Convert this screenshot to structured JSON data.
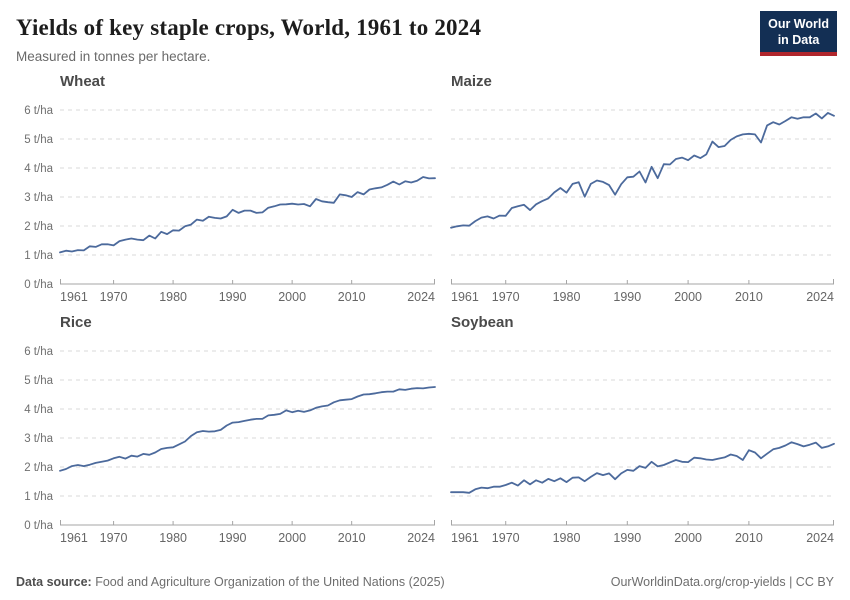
{
  "header": {
    "title": "Yields of key staple crops, World, 1961 to 2024",
    "subtitle": "Measured in tonnes per hectare.",
    "logo_line1": "Our World",
    "logo_line2": "in Data"
  },
  "colors": {
    "line": "#4c6a9c",
    "grid": "#d9d9d9",
    "axis": "#a5a5a5",
    "tick_text": "#6f6f6f",
    "logo_bg": "#132f54",
    "logo_accent": "#b0262c"
  },
  "chart_data": {
    "type": "line",
    "title": "Yields of key staple crops, World, 1961 to 2024",
    "subtitle": "Measured in tonnes per hectare.",
    "unit": "t/ha",
    "layout": "2x2 faceted small multiples, shared y-axis labels on left column only",
    "x_start": 1961,
    "x_end": 2024,
    "x_step": 1,
    "x_tick_labels": [
      1961,
      1970,
      1980,
      1990,
      2000,
      2010,
      2024
    ],
    "ylim": [
      0,
      6
    ],
    "y_ticks": [
      0,
      1,
      2,
      3,
      4,
      5,
      6
    ],
    "y_tick_format": "{v} t/ha",
    "grid": "horizontal-dashed",
    "legend": "none",
    "series": [
      {
        "name": "Wheat",
        "values": [
          1.09,
          1.15,
          1.12,
          1.17,
          1.16,
          1.3,
          1.28,
          1.37,
          1.37,
          1.33,
          1.48,
          1.53,
          1.57,
          1.53,
          1.51,
          1.67,
          1.57,
          1.8,
          1.72,
          1.85,
          1.84,
          1.99,
          2.05,
          2.22,
          2.18,
          2.32,
          2.28,
          2.26,
          2.33,
          2.56,
          2.45,
          2.53,
          2.53,
          2.45,
          2.47,
          2.63,
          2.68,
          2.74,
          2.75,
          2.77,
          2.74,
          2.76,
          2.68,
          2.93,
          2.85,
          2.82,
          2.8,
          3.09,
          3.06,
          3.0,
          3.17,
          3.09,
          3.26,
          3.3,
          3.33,
          3.42,
          3.53,
          3.43,
          3.54,
          3.5,
          3.56,
          3.69,
          3.64,
          3.65
        ]
      },
      {
        "name": "Maize",
        "values": [
          1.94,
          1.99,
          2.02,
          2.01,
          2.17,
          2.29,
          2.33,
          2.26,
          2.36,
          2.35,
          2.62,
          2.68,
          2.73,
          2.55,
          2.75,
          2.86,
          2.95,
          3.16,
          3.31,
          3.15,
          3.45,
          3.51,
          3.01,
          3.45,
          3.57,
          3.52,
          3.41,
          3.08,
          3.44,
          3.68,
          3.7,
          3.88,
          3.5,
          4.04,
          3.65,
          4.13,
          4.12,
          4.31,
          4.36,
          4.27,
          4.43,
          4.34,
          4.47,
          4.91,
          4.72,
          4.76,
          4.97,
          5.09,
          5.16,
          5.18,
          5.16,
          4.88,
          5.47,
          5.58,
          5.5,
          5.62,
          5.75,
          5.7,
          5.75,
          5.75,
          5.88,
          5.71,
          5.9,
          5.8
        ]
      },
      {
        "name": "Rice",
        "values": [
          1.87,
          1.93,
          2.03,
          2.07,
          2.03,
          2.08,
          2.14,
          2.18,
          2.22,
          2.3,
          2.35,
          2.29,
          2.39,
          2.36,
          2.45,
          2.42,
          2.5,
          2.62,
          2.66,
          2.68,
          2.78,
          2.88,
          3.07,
          3.2,
          3.24,
          3.22,
          3.23,
          3.28,
          3.43,
          3.53,
          3.55,
          3.59,
          3.63,
          3.66,
          3.66,
          3.78,
          3.8,
          3.83,
          3.95,
          3.89,
          3.94,
          3.9,
          3.95,
          4.04,
          4.09,
          4.12,
          4.23,
          4.3,
          4.32,
          4.34,
          4.43,
          4.5,
          4.51,
          4.54,
          4.58,
          4.6,
          4.6,
          4.68,
          4.66,
          4.7,
          4.72,
          4.71,
          4.74,
          4.76
        ]
      },
      {
        "name": "Soybean",
        "values": [
          1.13,
          1.13,
          1.13,
          1.11,
          1.23,
          1.29,
          1.27,
          1.32,
          1.32,
          1.38,
          1.46,
          1.36,
          1.54,
          1.4,
          1.54,
          1.46,
          1.59,
          1.51,
          1.61,
          1.48,
          1.63,
          1.64,
          1.51,
          1.66,
          1.79,
          1.72,
          1.78,
          1.58,
          1.78,
          1.9,
          1.87,
          2.03,
          1.97,
          2.18,
          2.02,
          2.07,
          2.16,
          2.24,
          2.18,
          2.17,
          2.32,
          2.3,
          2.26,
          2.24,
          2.29,
          2.33,
          2.43,
          2.38,
          2.24,
          2.58,
          2.5,
          2.3,
          2.46,
          2.61,
          2.66,
          2.74,
          2.85,
          2.79,
          2.71,
          2.77,
          2.84,
          2.66,
          2.71,
          2.8
        ]
      }
    ]
  },
  "footer": {
    "datasource_label": "Data source:",
    "datasource": " Food and Agriculture Organization of the United Nations (2025)",
    "link": "OurWorldinData.org/crop-yields",
    "separator": " | ",
    "license": "CC BY"
  }
}
